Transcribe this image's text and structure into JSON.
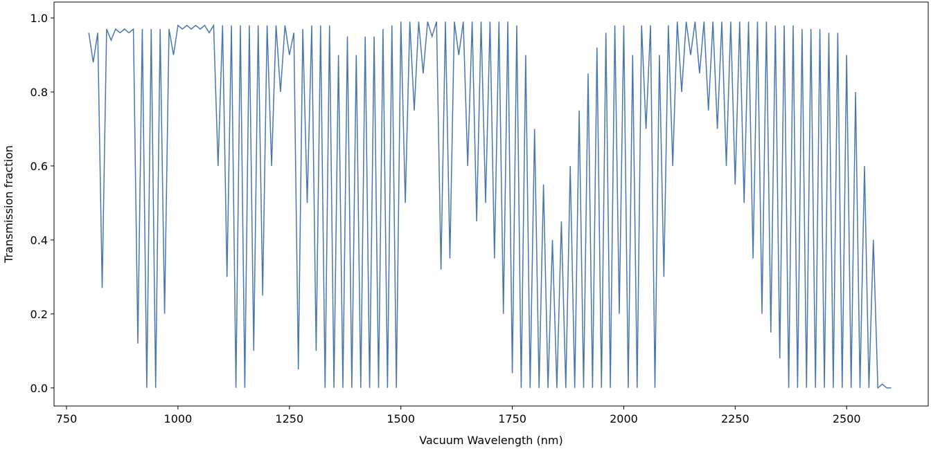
{
  "chart_data": {
    "type": "line",
    "xlabel": "Vacuum Wavelength (nm)",
    "ylabel": "Transmission fraction",
    "xlim": [
      722,
      2683
    ],
    "ylim": [
      -0.049,
      1.043
    ],
    "xticks": [
      750,
      1000,
      1250,
      1500,
      1750,
      2000,
      2250,
      2500
    ],
    "yticks": [
      {
        "value": 0,
        "label": "0.0"
      },
      0.2,
      0.4,
      0.6,
      0.8,
      {
        "value": 1,
        "label": "1.0"
      }
    ],
    "grid": false,
    "series": [
      {
        "color": "#4a76b0",
        "x": [
          800,
          810,
          820,
          830,
          840,
          850,
          860,
          870,
          880,
          890,
          900,
          910,
          920,
          930,
          940,
          950,
          960,
          970,
          980,
          990,
          1000,
          1010,
          1020,
          1030,
          1040,
          1050,
          1060,
          1070,
          1080,
          1090,
          1100,
          1110,
          1120,
          1130,
          1140,
          1150,
          1160,
          1170,
          1180,
          1190,
          1200,
          1210,
          1220,
          1230,
          1240,
          1250,
          1260,
          1270,
          1280,
          1290,
          1300,
          1310,
          1320,
          1330,
          1340,
          1350,
          1360,
          1370,
          1380,
          1390,
          1400,
          1410,
          1420,
          1430,
          1440,
          1450,
          1460,
          1470,
          1480,
          1490,
          1500,
          1510,
          1520,
          1530,
          1540,
          1550,
          1560,
          1570,
          1580,
          1590,
          1600,
          1610,
          1620,
          1630,
          1640,
          1650,
          1660,
          1670,
          1680,
          1690,
          1700,
          1710,
          1720,
          1730,
          1740,
          1750,
          1760,
          1770,
          1780,
          1790,
          1800,
          1810,
          1820,
          1830,
          1840,
          1850,
          1860,
          1870,
          1880,
          1890,
          1900,
          1910,
          1920,
          1930,
          1940,
          1950,
          1960,
          1970,
          1980,
          1990,
          2000,
          2010,
          2020,
          2030,
          2040,
          2050,
          2060,
          2070,
          2080,
          2090,
          2100,
          2110,
          2120,
          2130,
          2140,
          2150,
          2160,
          2170,
          2180,
          2190,
          2200,
          2210,
          2220,
          2230,
          2240,
          2250,
          2260,
          2270,
          2280,
          2290,
          2300,
          2310,
          2320,
          2330,
          2340,
          2350,
          2360,
          2370,
          2380,
          2390,
          2400,
          2410,
          2420,
          2430,
          2440,
          2450,
          2460,
          2470,
          2480,
          2490,
          2500,
          2510,
          2520,
          2530,
          2540,
          2550,
          2560,
          2570,
          2580,
          2590,
          2600
        ],
        "values": [
          0.96,
          0.88,
          0.96,
          0.27,
          0.97,
          0.94,
          0.97,
          0.96,
          0.97,
          0.96,
          0.97,
          0.12,
          0.97,
          0,
          0.97,
          0,
          0.97,
          0.2,
          0.97,
          0.9,
          0.98,
          0.97,
          0.98,
          0.97,
          0.98,
          0.97,
          0.98,
          0.96,
          0.98,
          0.6,
          0.98,
          0.3,
          0.98,
          0,
          0.98,
          0,
          0.98,
          0.1,
          0.98,
          0.25,
          0.98,
          0.6,
          0.98,
          0.8,
          0.98,
          0.9,
          0.96,
          0.05,
          0.97,
          0.5,
          0.98,
          0.1,
          0.98,
          0,
          0.98,
          0,
          0.9,
          0,
          0.95,
          0,
          0.9,
          0,
          0.95,
          0,
          0.95,
          0,
          0.97,
          0,
          0.98,
          0,
          0.99,
          0.5,
          0.99,
          0.75,
          0.99,
          0.85,
          0.99,
          0.95,
          0.99,
          0.32,
          0.99,
          0.35,
          0.99,
          0.9,
          0.99,
          0.6,
          0.99,
          0.45,
          0.99,
          0.5,
          0.99,
          0.35,
          0.99,
          0.2,
          0.99,
          0.04,
          0.98,
          0,
          0.9,
          0,
          0.7,
          0,
          0.55,
          0,
          0.4,
          0,
          0.45,
          0,
          0.6,
          0,
          0.75,
          0,
          0.85,
          0,
          0.92,
          0,
          0.96,
          0,
          0.98,
          0.2,
          0.98,
          0,
          0.9,
          0,
          0.98,
          0.7,
          0.98,
          0,
          0.9,
          0.3,
          0.98,
          0.6,
          0.99,
          0.8,
          0.99,
          0.9,
          0.99,
          0.85,
          0.99,
          0.75,
          0.99,
          0.7,
          0.99,
          0.6,
          0.99,
          0.55,
          0.99,
          0.5,
          0.99,
          0.35,
          0.99,
          0.2,
          0.99,
          0.15,
          0.98,
          0.08,
          0.98,
          0,
          0.98,
          0,
          0.97,
          0,
          0.97,
          0,
          0.97,
          0,
          0.96,
          0,
          0.96,
          0,
          0.9,
          0,
          0.8,
          0,
          0.6,
          0,
          0.4,
          0,
          0.01,
          0,
          0
        ]
      }
    ]
  }
}
